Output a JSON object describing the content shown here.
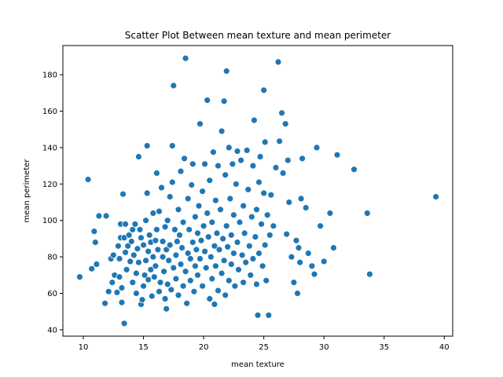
{
  "chart_data": {
    "type": "scatter",
    "title": "Scatter Plot Between mean texture and mean perimeter",
    "xlabel": "mean texture",
    "ylabel": "mean perimeter",
    "xlim": [
      8.3,
      40.7
    ],
    "ylim": [
      36.5,
      196
    ],
    "xticks": [
      10,
      15,
      20,
      25,
      30,
      35,
      40
    ],
    "yticks": [
      40,
      60,
      80,
      100,
      120,
      140,
      160,
      180
    ],
    "grid": false,
    "legend": "none",
    "marker_color": "#1f77b4",
    "marker_edge": "#ffffff",
    "points": [
      [
        9.7,
        69
      ],
      [
        10.4,
        122.5
      ],
      [
        10.7,
        73.5
      ],
      [
        10.9,
        94
      ],
      [
        11,
        88
      ],
      [
        11.1,
        76
      ],
      [
        11.3,
        102.5
      ],
      [
        11.8,
        54.5
      ],
      [
        11.9,
        102.5
      ],
      [
        12.1,
        61
      ],
      [
        12.3,
        79
      ],
      [
        12.4,
        66
      ],
      [
        12.5,
        81
      ],
      [
        12.6,
        70
      ],
      [
        12.8,
        60.5
      ],
      [
        12.9,
        86
      ],
      [
        13,
        79
      ],
      [
        13,
        69
      ],
      [
        13.1,
        98
      ],
      [
        13.1,
        90.5
      ],
      [
        13.2,
        63
      ],
      [
        13.2,
        55
      ],
      [
        13.3,
        114.5
      ],
      [
        13.4,
        90.5
      ],
      [
        13.4,
        43.5
      ],
      [
        13.5,
        98
      ],
      [
        13.5,
        82.5
      ],
      [
        13.6,
        73
      ],
      [
        13.7,
        86
      ],
      [
        13.8,
        92
      ],
      [
        13.9,
        77.5
      ],
      [
        14,
        88.5
      ],
      [
        14.1,
        95
      ],
      [
        14.1,
        66
      ],
      [
        14.2,
        81
      ],
      [
        14.3,
        98
      ],
      [
        14.4,
        60
      ],
      [
        14.4,
        71
      ],
      [
        14.5,
        84.5
      ],
      [
        14.6,
        135
      ],
      [
        14.6,
        77
      ],
      [
        14.7,
        95
      ],
      [
        14.8,
        54
      ],
      [
        14.8,
        90.5
      ],
      [
        14.9,
        56.5
      ],
      [
        15,
        64
      ],
      [
        15,
        86.5
      ],
      [
        15.1,
        70
      ],
      [
        15.2,
        78
      ],
      [
        15.2,
        100
      ],
      [
        15.3,
        141
      ],
      [
        15.3,
        115
      ],
      [
        15.4,
        67.5
      ],
      [
        15.4,
        83
      ],
      [
        15.5,
        92
      ],
      [
        15.6,
        73
      ],
      [
        15.6,
        88
      ],
      [
        15.7,
        58.5
      ],
      [
        15.8,
        80
      ],
      [
        15.8,
        104
      ],
      [
        15.9,
        69
      ],
      [
        16,
        89
      ],
      [
        16,
        75
      ],
      [
        16.1,
        95
      ],
      [
        16.1,
        126
      ],
      [
        16.2,
        84
      ],
      [
        16.3,
        105
      ],
      [
        16.3,
        61
      ],
      [
        16.4,
        66
      ],
      [
        16.5,
        118
      ],
      [
        16.6,
        80
      ],
      [
        16.6,
        88.5
      ],
      [
        16.7,
        72
      ],
      [
        16.8,
        57
      ],
      [
        16.8,
        96.5
      ],
      [
        16.9,
        51.5
      ],
      [
        16.9,
        84
      ],
      [
        17,
        100
      ],
      [
        17,
        65
      ],
      [
        17.1,
        78
      ],
      [
        17.2,
        86.5
      ],
      [
        17.2,
        113
      ],
      [
        17.3,
        62
      ],
      [
        17.4,
        121
      ],
      [
        17.4,
        141
      ],
      [
        17.5,
        174
      ],
      [
        17.5,
        74
      ],
      [
        17.6,
        95
      ],
      [
        17.7,
        81
      ],
      [
        17.7,
        68
      ],
      [
        17.8,
        88.5
      ],
      [
        17.9,
        106
      ],
      [
        17.9,
        59
      ],
      [
        18,
        92
      ],
      [
        18.1,
        76
      ],
      [
        18.1,
        127
      ],
      [
        18.2,
        85
      ],
      [
        18.3,
        64
      ],
      [
        18.3,
        99
      ],
      [
        18.4,
        134
      ],
      [
        18.5,
        189
      ],
      [
        18.5,
        72
      ],
      [
        18.6,
        54.5
      ],
      [
        18.7,
        82
      ],
      [
        18.7,
        112
      ],
      [
        18.8,
        95
      ],
      [
        18.9,
        79
      ],
      [
        18.9,
        67
      ],
      [
        19,
        119.5
      ],
      [
        19.1,
        88
      ],
      [
        19.1,
        131
      ],
      [
        19.2,
        61
      ],
      [
        19.3,
        102
      ],
      [
        19.3,
        75
      ],
      [
        19.4,
        84
      ],
      [
        19.5,
        93
      ],
      [
        19.5,
        70
      ],
      [
        19.6,
        108
      ],
      [
        19.7,
        153
      ],
      [
        19.7,
        79
      ],
      [
        19.8,
        89
      ],
      [
        19.9,
        116
      ],
      [
        19.9,
        64
      ],
      [
        20,
        97
      ],
      [
        20.1,
        83
      ],
      [
        20.1,
        131
      ],
      [
        20.2,
        74
      ],
      [
        20.3,
        166
      ],
      [
        20.3,
        104
      ],
      [
        20.4,
        91
      ],
      [
        20.5,
        57
      ],
      [
        20.5,
        122
      ],
      [
        20.6,
        80
      ],
      [
        20.7,
        68
      ],
      [
        20.7,
        99
      ],
      [
        20.8,
        137.5
      ],
      [
        20.9,
        86
      ],
      [
        20.9,
        54
      ],
      [
        21,
        111
      ],
      [
        21,
        75
      ],
      [
        21.1,
        93
      ],
      [
        21.2,
        130
      ],
      [
        21.2,
        61.5
      ],
      [
        21.3,
        84
      ],
      [
        21.4,
        106
      ],
      [
        21.5,
        71
      ],
      [
        21.5,
        149
      ],
      [
        21.6,
        90
      ],
      [
        21.7,
        165.5
      ],
      [
        21.7,
        78
      ],
      [
        21.8,
        59
      ],
      [
        21.8,
        125
      ],
      [
        21.9,
        182
      ],
      [
        21.9,
        97
      ],
      [
        22,
        85.5
      ],
      [
        22.1,
        67
      ],
      [
        22.1,
        140
      ],
      [
        22.2,
        112
      ],
      [
        22.3,
        92
      ],
      [
        22.3,
        76
      ],
      [
        22.4,
        131
      ],
      [
        22.5,
        103
      ],
      [
        22.5,
        82
      ],
      [
        22.6,
        64
      ],
      [
        22.7,
        120
      ],
      [
        22.8,
        138
      ],
      [
        22.8,
        88
      ],
      [
        22.9,
        73
      ],
      [
        23,
        99
      ],
      [
        23.1,
        133
      ],
      [
        23.2,
        81
      ],
      [
        23.3,
        108
      ],
      [
        23.3,
        66
      ],
      [
        23.4,
        93
      ],
      [
        23.5,
        77
      ],
      [
        23.6,
        138.5
      ],
      [
        23.7,
        117
      ],
      [
        23.8,
        86
      ],
      [
        23.9,
        70
      ],
      [
        24,
        102
      ],
      [
        24.1,
        79
      ],
      [
        24.1,
        130
      ],
      [
        24.2,
        155
      ],
      [
        24.3,
        91
      ],
      [
        24.4,
        106
      ],
      [
        24.4,
        65
      ],
      [
        24.5,
        48
      ],
      [
        24.6,
        82
      ],
      [
        24.6,
        121
      ],
      [
        24.7,
        135
      ],
      [
        24.8,
        98
      ],
      [
        24.9,
        75
      ],
      [
        25,
        171.5
      ],
      [
        25,
        115
      ],
      [
        25.1,
        143
      ],
      [
        25.1,
        86.5
      ],
      [
        25.2,
        67
      ],
      [
        25.3,
        103
      ],
      [
        25.4,
        48
      ],
      [
        25.5,
        92
      ],
      [
        25.6,
        114
      ],
      [
        25.8,
        97
      ],
      [
        26,
        129
      ],
      [
        26.2,
        187
      ],
      [
        26.3,
        143.5
      ],
      [
        26.5,
        159
      ],
      [
        26.6,
        126
      ],
      [
        26.8,
        153
      ],
      [
        26.9,
        92.5
      ],
      [
        27,
        133
      ],
      [
        27.1,
        110
      ],
      [
        27.3,
        80
      ],
      [
        27.5,
        66
      ],
      [
        27.7,
        89
      ],
      [
        27.8,
        60
      ],
      [
        27.9,
        85
      ],
      [
        28,
        77
      ],
      [
        28.1,
        112
      ],
      [
        28.2,
        134
      ],
      [
        28.5,
        107
      ],
      [
        28.7,
        82
      ],
      [
        29,
        75
      ],
      [
        29.2,
        70.5
      ],
      [
        29.4,
        140
      ],
      [
        29.7,
        97
      ],
      [
        30,
        77.5
      ],
      [
        30.5,
        104
      ],
      [
        30.8,
        85
      ],
      [
        31.1,
        136
      ],
      [
        32.5,
        128
      ],
      [
        33.6,
        104
      ],
      [
        33.8,
        70.5
      ],
      [
        39.3,
        113
      ]
    ]
  }
}
